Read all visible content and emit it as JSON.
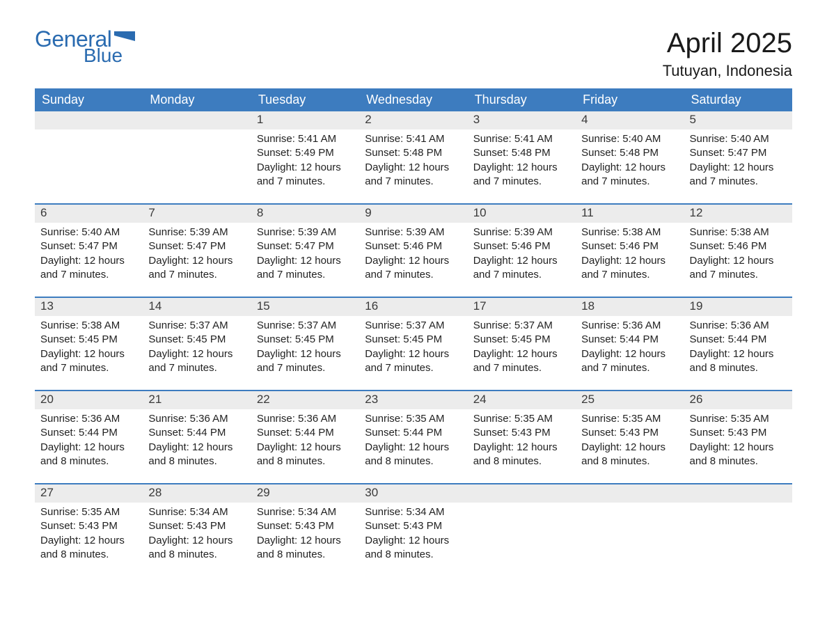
{
  "brand": {
    "part1": "General",
    "part2": "Blue"
  },
  "title": "April 2025",
  "location": "Tutuyan, Indonesia",
  "colors": {
    "header_bg": "#3d7cbf",
    "header_fg": "#ffffff",
    "row_divider": "#3d7cbf",
    "daynum_bg": "#ececec",
    "brand_color": "#2a6bb0",
    "text": "#1a1a1a"
  },
  "weekdays": [
    "Sunday",
    "Monday",
    "Tuesday",
    "Wednesday",
    "Thursday",
    "Friday",
    "Saturday"
  ],
  "weeks": [
    [
      null,
      null,
      {
        "n": "1",
        "sr": "5:41 AM",
        "ss": "5:49 PM",
        "dl": "12 hours and 7 minutes."
      },
      {
        "n": "2",
        "sr": "5:41 AM",
        "ss": "5:48 PM",
        "dl": "12 hours and 7 minutes."
      },
      {
        "n": "3",
        "sr": "5:41 AM",
        "ss": "5:48 PM",
        "dl": "12 hours and 7 minutes."
      },
      {
        "n": "4",
        "sr": "5:40 AM",
        "ss": "5:48 PM",
        "dl": "12 hours and 7 minutes."
      },
      {
        "n": "5",
        "sr": "5:40 AM",
        "ss": "5:47 PM",
        "dl": "12 hours and 7 minutes."
      }
    ],
    [
      {
        "n": "6",
        "sr": "5:40 AM",
        "ss": "5:47 PM",
        "dl": "12 hours and 7 minutes."
      },
      {
        "n": "7",
        "sr": "5:39 AM",
        "ss": "5:47 PM",
        "dl": "12 hours and 7 minutes."
      },
      {
        "n": "8",
        "sr": "5:39 AM",
        "ss": "5:47 PM",
        "dl": "12 hours and 7 minutes."
      },
      {
        "n": "9",
        "sr": "5:39 AM",
        "ss": "5:46 PM",
        "dl": "12 hours and 7 minutes."
      },
      {
        "n": "10",
        "sr": "5:39 AM",
        "ss": "5:46 PM",
        "dl": "12 hours and 7 minutes."
      },
      {
        "n": "11",
        "sr": "5:38 AM",
        "ss": "5:46 PM",
        "dl": "12 hours and 7 minutes."
      },
      {
        "n": "12",
        "sr": "5:38 AM",
        "ss": "5:46 PM",
        "dl": "12 hours and 7 minutes."
      }
    ],
    [
      {
        "n": "13",
        "sr": "5:38 AM",
        "ss": "5:45 PM",
        "dl": "12 hours and 7 minutes."
      },
      {
        "n": "14",
        "sr": "5:37 AM",
        "ss": "5:45 PM",
        "dl": "12 hours and 7 minutes."
      },
      {
        "n": "15",
        "sr": "5:37 AM",
        "ss": "5:45 PM",
        "dl": "12 hours and 7 minutes."
      },
      {
        "n": "16",
        "sr": "5:37 AM",
        "ss": "5:45 PM",
        "dl": "12 hours and 7 minutes."
      },
      {
        "n": "17",
        "sr": "5:37 AM",
        "ss": "5:45 PM",
        "dl": "12 hours and 7 minutes."
      },
      {
        "n": "18",
        "sr": "5:36 AM",
        "ss": "5:44 PM",
        "dl": "12 hours and 7 minutes."
      },
      {
        "n": "19",
        "sr": "5:36 AM",
        "ss": "5:44 PM",
        "dl": "12 hours and 8 minutes."
      }
    ],
    [
      {
        "n": "20",
        "sr": "5:36 AM",
        "ss": "5:44 PM",
        "dl": "12 hours and 8 minutes."
      },
      {
        "n": "21",
        "sr": "5:36 AM",
        "ss": "5:44 PM",
        "dl": "12 hours and 8 minutes."
      },
      {
        "n": "22",
        "sr": "5:36 AM",
        "ss": "5:44 PM",
        "dl": "12 hours and 8 minutes."
      },
      {
        "n": "23",
        "sr": "5:35 AM",
        "ss": "5:44 PM",
        "dl": "12 hours and 8 minutes."
      },
      {
        "n": "24",
        "sr": "5:35 AM",
        "ss": "5:43 PM",
        "dl": "12 hours and 8 minutes."
      },
      {
        "n": "25",
        "sr": "5:35 AM",
        "ss": "5:43 PM",
        "dl": "12 hours and 8 minutes."
      },
      {
        "n": "26",
        "sr": "5:35 AM",
        "ss": "5:43 PM",
        "dl": "12 hours and 8 minutes."
      }
    ],
    [
      {
        "n": "27",
        "sr": "5:35 AM",
        "ss": "5:43 PM",
        "dl": "12 hours and 8 minutes."
      },
      {
        "n": "28",
        "sr": "5:34 AM",
        "ss": "5:43 PM",
        "dl": "12 hours and 8 minutes."
      },
      {
        "n": "29",
        "sr": "5:34 AM",
        "ss": "5:43 PM",
        "dl": "12 hours and 8 minutes."
      },
      {
        "n": "30",
        "sr": "5:34 AM",
        "ss": "5:43 PM",
        "dl": "12 hours and 8 minutes."
      },
      null,
      null,
      null
    ]
  ],
  "labels": {
    "sunrise": "Sunrise: ",
    "sunset": "Sunset: ",
    "daylight": "Daylight: "
  }
}
